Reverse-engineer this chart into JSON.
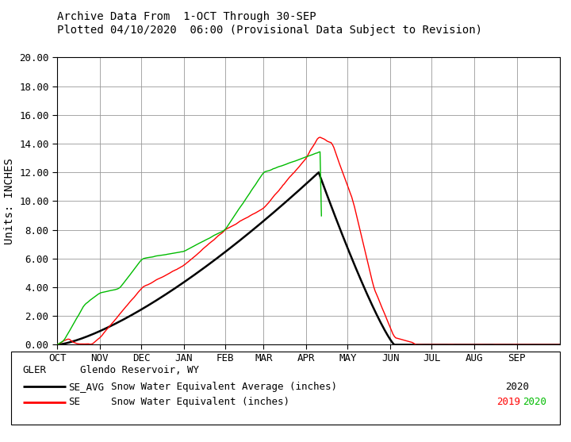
{
  "title_line1": "Archive Data From  1-OCT Through 30-SEP",
  "title_line2": "Plotted 04/10/2020  06:00 (Provisional Data Subject to Revision)",
  "ylabel": "Units: INCHES",
  "ylim": [
    0,
    20.0
  ],
  "yticks": [
    0,
    2.0,
    4.0,
    6.0,
    8.0,
    10.0,
    12.0,
    14.0,
    16.0,
    18.0,
    20.0
  ],
  "month_labels": [
    "OCT",
    "NOV",
    "DEC",
    "JAN",
    "FEB",
    "MAR",
    "APR",
    "MAY",
    "JUN",
    "JUL",
    "AUG",
    "SEP"
  ],
  "legend_station": "GLER",
  "legend_station_name": "Glendo Reservoir, WY",
  "legend_avg_label": "SE_AVG",
  "legend_avg_desc": "Snow Water Equivalent Average (inches)",
  "legend_avg_year": "2020",
  "legend_se_label": "SE",
  "legend_se_desc": "Snow Water Equivalent (inches)",
  "avg_color": "#000000",
  "se2019_color": "#ff0000",
  "se2020_color": "#00bb00",
  "background_color": "#ffffff",
  "grid_color": "#999999",
  "title_fontsize": 10,
  "axis_fontsize": 9,
  "month_ticks": [
    0,
    31,
    61,
    92,
    122,
    150,
    181,
    211,
    242,
    272,
    303,
    334
  ]
}
